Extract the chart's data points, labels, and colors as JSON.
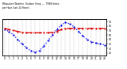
{
  "title": "Milwaukee Weather  Outdoor Temp  —  THSW Index  per Hour (Last 24 Hours)",
  "hours": [
    0,
    1,
    2,
    3,
    4,
    5,
    6,
    7,
    8,
    9,
    10,
    11,
    12,
    13,
    14,
    15,
    16,
    17,
    18,
    19,
    20,
    21,
    22,
    23
  ],
  "temp": [
    75,
    72,
    70,
    68,
    66,
    65,
    65,
    65,
    65,
    65,
    65,
    66,
    68,
    72,
    74,
    75,
    75,
    75,
    75,
    75,
    75,
    75,
    75,
    75
  ],
  "thsw": [
    72,
    68,
    60,
    50,
    40,
    32,
    25,
    22,
    25,
    35,
    48,
    60,
    72,
    82,
    88,
    85,
    78,
    68,
    58,
    50,
    45,
    42,
    40,
    38
  ],
  "temp_color": "#dd0000",
  "thsw_color": "#0000ee",
  "bg_color": "#ffffff",
  "grid_color": "#888888",
  "ylim": [
    15,
    95
  ],
  "yticks_right": [
    20,
    30,
    40,
    50,
    60,
    70,
    80,
    90
  ],
  "ytick_labels_right": [
    "20",
    "30",
    "40",
    "50",
    "60",
    "70",
    "80",
    "90"
  ],
  "fig_width": 1.6,
  "fig_height": 0.87,
  "dpi": 100
}
